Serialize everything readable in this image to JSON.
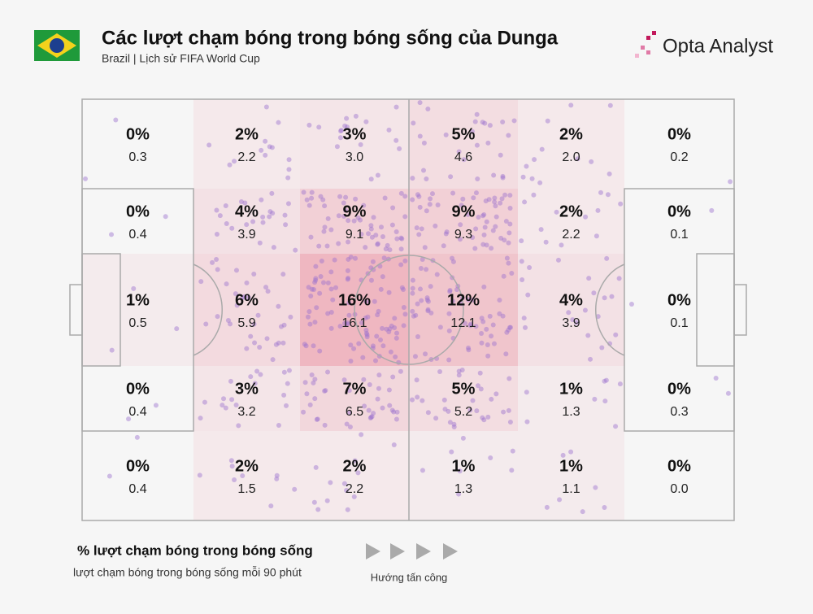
{
  "chart_data": {
    "type": "heatmap",
    "title": "Các lượt chạm bóng trong bóng sống của Dunga",
    "subtitle": "Brazil | Lịch sử FIFA World Cup",
    "brand": "Opta Analyst",
    "direction_label": "Hướng tấn công",
    "series": [
      {
        "name": "% lượt chạm bóng trong bóng sống",
        "color": "#e8788c",
        "values": [
          [
            0,
            2,
            3,
            5,
            2,
            0
          ],
          [
            0,
            4,
            9,
            9,
            2,
            0
          ],
          [
            1,
            6,
            16,
            12,
            4,
            0
          ],
          [
            0,
            3,
            7,
            5,
            1,
            0
          ],
          [
            0,
            2,
            2,
            1,
            1,
            0
          ]
        ],
        "value_labels": [
          [
            "0%",
            "2%",
            "3%",
            "5%",
            "2%",
            "0%"
          ],
          [
            "0%",
            "4%",
            "9%",
            "9%",
            "2%",
            "0%"
          ],
          [
            "1%",
            "6%",
            "16%",
            "12%",
            "4%",
            "0%"
          ],
          [
            "0%",
            "3%",
            "7%",
            "5%",
            "1%",
            "0%"
          ],
          [
            "0%",
            "2%",
            "2%",
            "1%",
            "1%",
            "0%"
          ]
        ]
      },
      {
        "name": "lượt chạm bóng trong bóng sống mỗi 90 phút",
        "color": "#9b72cf",
        "values": [
          [
            0.3,
            2.2,
            3.0,
            4.6,
            2.0,
            0.2
          ],
          [
            0.4,
            3.9,
            9.1,
            9.3,
            2.2,
            0.1
          ],
          [
            0.5,
            5.9,
            16.1,
            12.1,
            3.9,
            0.1
          ],
          [
            0.4,
            3.2,
            6.5,
            5.2,
            1.3,
            0.3
          ],
          [
            0.4,
            1.5,
            2.2,
            1.3,
            1.1,
            0.0
          ]
        ],
        "value_labels": [
          [
            "0.3",
            "2.2",
            "3.0",
            "4.6",
            "2.0",
            "0.2"
          ],
          [
            "0.4",
            "3.9",
            "9.1",
            "9.3",
            "2.2",
            "0.1"
          ],
          [
            "0.5",
            "5.9",
            "16.1",
            "12.1",
            "3.9",
            "0.1"
          ],
          [
            "0.4",
            "3.2",
            "6.5",
            "5.2",
            "1.3",
            "0.3"
          ],
          [
            "0.4",
            "1.5",
            "2.2",
            "1.3",
            "1.1",
            "0.0"
          ]
        ]
      }
    ]
  }
}
